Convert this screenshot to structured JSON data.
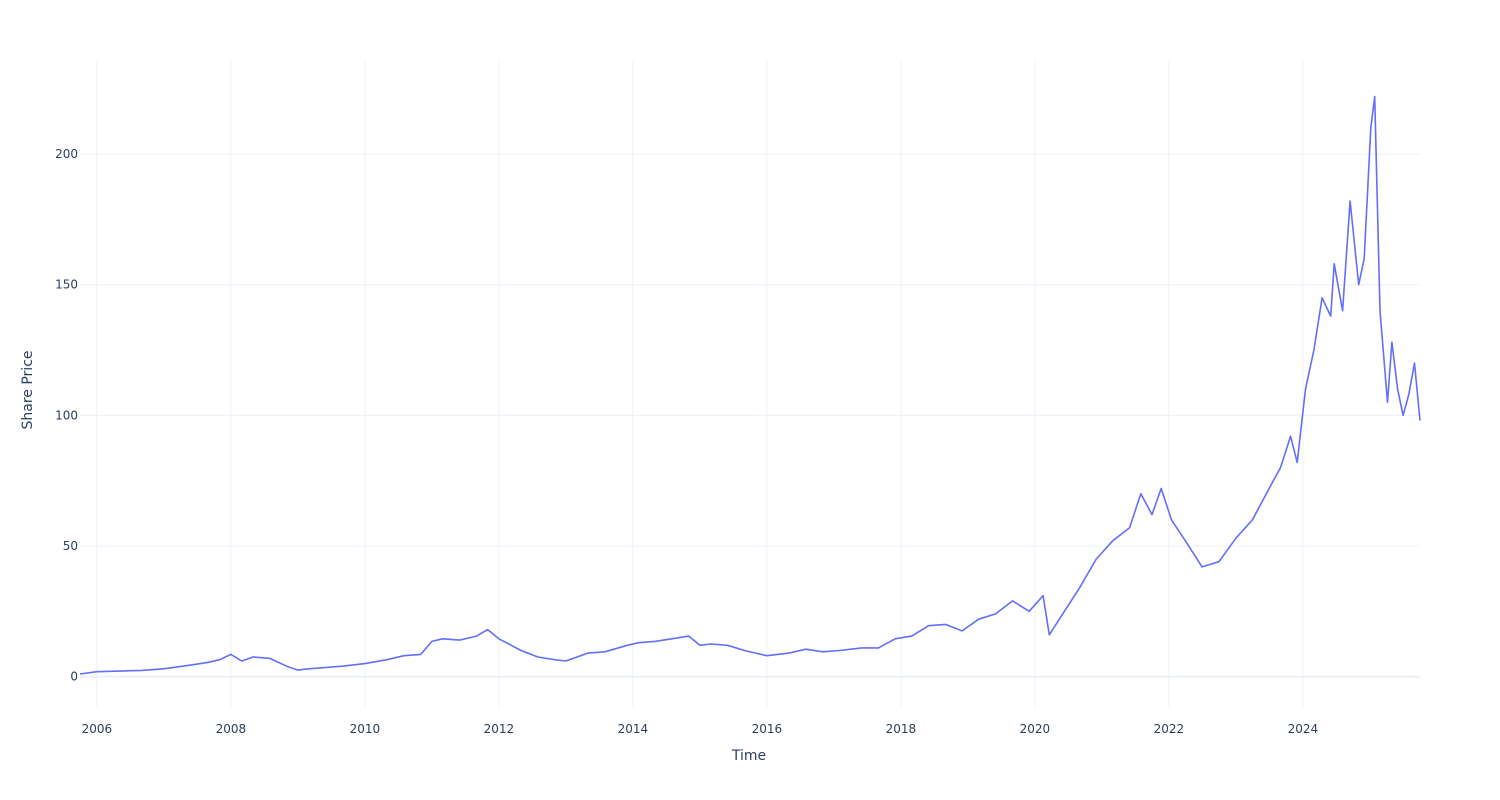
{
  "chart_data": {
    "type": "line",
    "title": "",
    "xlabel": "Time",
    "ylabel": "Share Price",
    "grid": true,
    "legend": "none",
    "xlim": [
      "2005-10-01",
      "2025-10-01"
    ],
    "ylim": [
      -12,
      236
    ],
    "x_ticks": [
      "2006",
      "2008",
      "2010",
      "2012",
      "2014",
      "2016",
      "2018",
      "2020",
      "2022",
      "2024"
    ],
    "y_ticks": [
      0,
      50,
      100,
      150,
      200
    ],
    "series": [
      {
        "color": "#636efa",
        "x": [
          "2005-10-01",
          "2006-01-01",
          "2006-06-01",
          "2006-09-01",
          "2007-01-01",
          "2007-06-01",
          "2007-09-01",
          "2007-11-01",
          "2008-01-01",
          "2008-03-01",
          "2008-05-01",
          "2008-08-01",
          "2008-11-01",
          "2009-01-01",
          "2009-03-01",
          "2009-06-01",
          "2009-09-01",
          "2010-01-01",
          "2010-05-01",
          "2010-08-01",
          "2010-11-01",
          "2011-01-01",
          "2011-03-01",
          "2011-06-01",
          "2011-09-01",
          "2011-11-01",
          "2012-01-01",
          "2012-05-01",
          "2012-08-01",
          "2012-11-01",
          "2013-01-01",
          "2013-05-01",
          "2013-08-01",
          "2013-12-01",
          "2014-02-01",
          "2014-05-01",
          "2014-08-01",
          "2014-11-01",
          "2015-01-01",
          "2015-03-01",
          "2015-06-01",
          "2015-09-01",
          "2016-01-01",
          "2016-05-01",
          "2016-08-01",
          "2016-11-01",
          "2017-02-01",
          "2017-06-01",
          "2017-09-01",
          "2017-12-01",
          "2018-03-01",
          "2018-06-01",
          "2018-09-01",
          "2018-12-01",
          "2019-03-01",
          "2019-06-01",
          "2019-09-01",
          "2019-12-01",
          "2020-02-15",
          "2020-03-20",
          "2020-06-01",
          "2020-09-01",
          "2020-12-01",
          "2021-03-01",
          "2021-06-01",
          "2021-08-01",
          "2021-10-01",
          "2021-11-20",
          "2022-01-15",
          "2022-04-01",
          "2022-07-01",
          "2022-10-01",
          "2023-01-01",
          "2023-04-01",
          "2023-07-01",
          "2023-09-01",
          "2023-10-26",
          "2023-12-01",
          "2024-01-15",
          "2024-03-01",
          "2024-04-15",
          "2024-06-01",
          "2024-06-20",
          "2024-08-05",
          "2024-09-15",
          "2024-11-01",
          "2024-12-01",
          "2025-01-06",
          "2025-01-27",
          "2025-02-25",
          "2025-04-07",
          "2025-05-01",
          "2025-06-01",
          "2025-07-01",
          "2025-08-01",
          "2025-09-01",
          "2025-10-01"
        ],
        "y": [
          1.0,
          1.9,
          2.2,
          2.4,
          3.0,
          4.5,
          5.5,
          6.5,
          8.5,
          6.0,
          7.5,
          7.0,
          4.0,
          2.5,
          3.0,
          3.5,
          4.0,
          5.0,
          6.5,
          8.0,
          8.5,
          13.5,
          14.5,
          14.0,
          15.5,
          18.0,
          14.5,
          10.0,
          7.5,
          6.5,
          6.0,
          9.0,
          9.5,
          12.0,
          13.0,
          13.5,
          14.5,
          15.5,
          12.0,
          12.5,
          12.0,
          10.0,
          8.0,
          9.0,
          10.5,
          9.5,
          10.0,
          11.0,
          11.0,
          14.5,
          15.5,
          19.5,
          20.0,
          17.5,
          22.0,
          24.0,
          29.0,
          25.0,
          31.0,
          16.0,
          24.0,
          34.0,
          45.0,
          52.0,
          57.0,
          70.0,
          62.0,
          72.0,
          60.0,
          52.0,
          42.0,
          44.0,
          53.0,
          60.0,
          72.0,
          80.0,
          92.0,
          82.0,
          110.0,
          125.0,
          145.0,
          138.0,
          158.0,
          140.0,
          182.0,
          150.0,
          160.0,
          210.0,
          222.0,
          140.0,
          105.0,
          128.0,
          110.0,
          100.0,
          108.0,
          120.0,
          98.0
        ]
      }
    ]
  }
}
